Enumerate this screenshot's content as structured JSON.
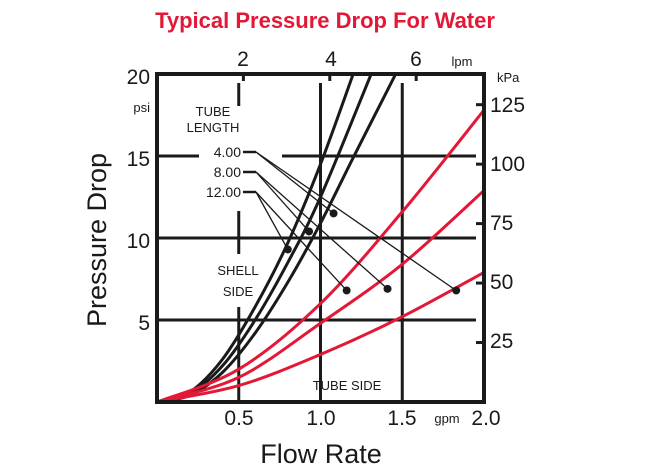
{
  "chart_data": {
    "type": "line",
    "title": "Typical Pressure Drop For Water",
    "xlabel": "Flow Rate",
    "ylabel": "Pressure Drop",
    "x_unit": "gpm",
    "y_unit": "psi",
    "xlim": [
      0,
      2.0
    ],
    "ylim": [
      0,
      20
    ],
    "x_ticks": [
      "0.5",
      "1.0",
      "1.5",
      "2.0"
    ],
    "x_tick_values": [
      0.5,
      1.0,
      1.5,
      2.0
    ],
    "y_ticks": [
      "5",
      "10",
      "15",
      "20"
    ],
    "y_tick_values": [
      5,
      10,
      15,
      20
    ],
    "secondary_x": {
      "unit": "lpm",
      "ticks": [
        "2",
        "4",
        "6"
      ],
      "tick_values": [
        2,
        4,
        6
      ]
    },
    "secondary_y": {
      "unit": "kPa",
      "ticks": [
        "25",
        "50",
        "75",
        "100",
        "125"
      ],
      "tick_values": [
        25,
        50,
        75,
        100,
        125
      ]
    },
    "grid": true,
    "legend_title": [
      "TUBE",
      "LENGTH"
    ],
    "tube_lengths": [
      "4.00",
      "8.00",
      "12.00"
    ],
    "annotations": {
      "shell_side": [
        "SHELL",
        "SIDE"
      ],
      "tube_side": "TUBE SIDE"
    },
    "colors": {
      "title": "#e31837",
      "shell": "#1a1a1a",
      "tube": "#e31837",
      "grid": "#1a1a1a"
    },
    "series": [
      {
        "name": "Shell side 12.00",
        "group": "shell",
        "length": "12.00",
        "x": [
          0,
          0.2,
          0.4,
          0.6,
          0.8,
          1.0,
          1.2
        ],
        "y": [
          0,
          0.6,
          2.6,
          5.8,
          9.7,
          14.5,
          20
        ],
        "marker": [
          0.8,
          9.3
        ]
      },
      {
        "name": "Shell side 8.00",
        "group": "shell",
        "length": "8.00",
        "x": [
          0,
          0.2,
          0.4,
          0.6,
          0.8,
          1.0,
          1.31
        ],
        "y": [
          0,
          0.5,
          2.2,
          5.0,
          8.5,
          12.5,
          20
        ],
        "marker": [
          0.93,
          10.4
        ]
      },
      {
        "name": "Shell side 4.00",
        "group": "shell",
        "length": "4.00",
        "x": [
          0,
          0.2,
          0.4,
          0.6,
          0.8,
          1.0,
          1.2,
          1.46
        ],
        "y": [
          0,
          0.4,
          1.8,
          4.2,
          7.3,
          10.9,
          14.9,
          20
        ],
        "marker": [
          1.08,
          11.5
        ]
      },
      {
        "name": "Tube side 4.00",
        "group": "tube",
        "length": "4.00",
        "x": [
          0,
          0.5,
          1.0,
          1.5,
          2.0
        ],
        "y": [
          0,
          1.0,
          2.9,
          5.2,
          7.9
        ],
        "marker": [
          1.83,
          6.8
        ]
      },
      {
        "name": "Tube side 8.00",
        "group": "tube",
        "length": "8.00",
        "x": [
          0,
          0.5,
          1.0,
          1.5,
          2.0
        ],
        "y": [
          0,
          1.5,
          4.8,
          8.4,
          12.9
        ],
        "marker": [
          1.41,
          6.9
        ]
      },
      {
        "name": "Tube side 12.00",
        "group": "tube",
        "length": "12.00",
        "x": [
          0,
          0.5,
          1.0,
          1.5,
          2.0
        ],
        "y": [
          0,
          2.0,
          6.0,
          11.6,
          17.8
        ],
        "marker": [
          1.16,
          6.8
        ]
      }
    ]
  }
}
